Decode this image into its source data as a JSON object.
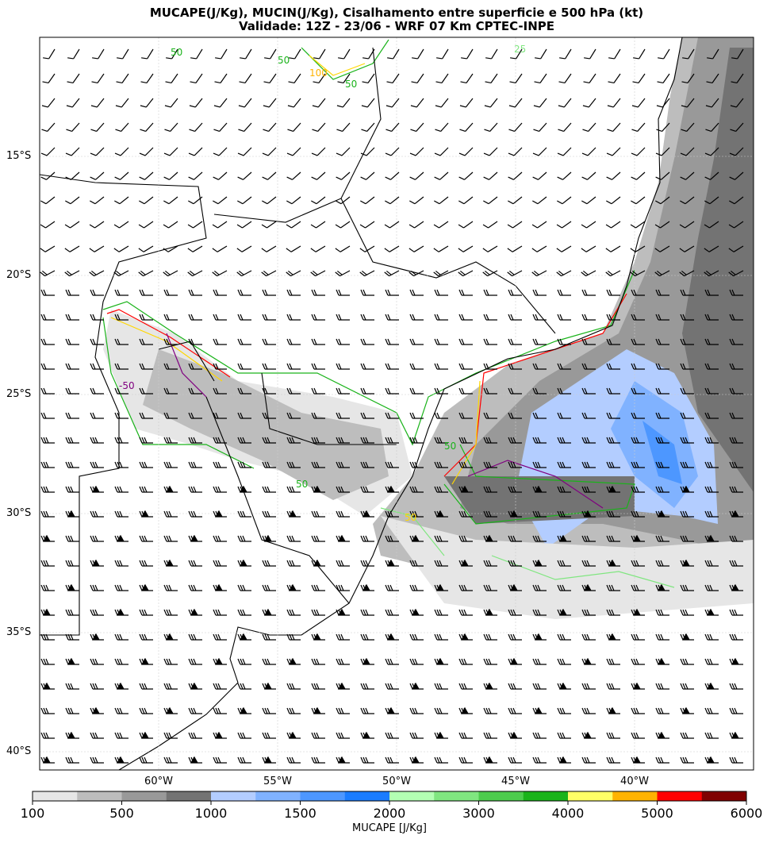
{
  "title": {
    "line1": "MUCAPE(J/Kg), MUCIN(J/Kg), Cisalhamento entre superficie e 500 hPa (kt)",
    "line2": "Validade: 12Z - 23/06 - WRF 07 Km CPTEC-INPE"
  },
  "map": {
    "lat_labels": [
      "15°S",
      "20°S",
      "25°S",
      "30°S",
      "35°S",
      "40°S"
    ],
    "lon_labels": [
      "60°W",
      "55°W",
      "50°W",
      "45°W",
      "40°W"
    ],
    "contour_labels": [
      "50",
      "50",
      "100",
      "50",
      "25",
      "50",
      "50",
      "50",
      "-50"
    ]
  },
  "colorbar": {
    "label": "MUCAPE [J/Kg]",
    "ticks": [
      "100",
      "500",
      "1000",
      "1500",
      "2000",
      "3000",
      "4000",
      "5000",
      "6000"
    ],
    "bounds": [
      100,
      250,
      500,
      750,
      1000,
      1250,
      1500,
      1750,
      2000,
      2500,
      3000,
      3500,
      4000,
      4500,
      5000,
      5500,
      6000
    ],
    "colors": [
      "#e6e6e6",
      "#bdbdbd",
      "#999999",
      "#737373",
      "#b3cdff",
      "#80b2ff",
      "#4d97ff",
      "#1a7cff",
      "#b3ffb3",
      "#80e680",
      "#4dcc4d",
      "#1ab31a",
      "#ffff66",
      "#ffb300",
      "#ff0000",
      "#800000"
    ]
  }
}
